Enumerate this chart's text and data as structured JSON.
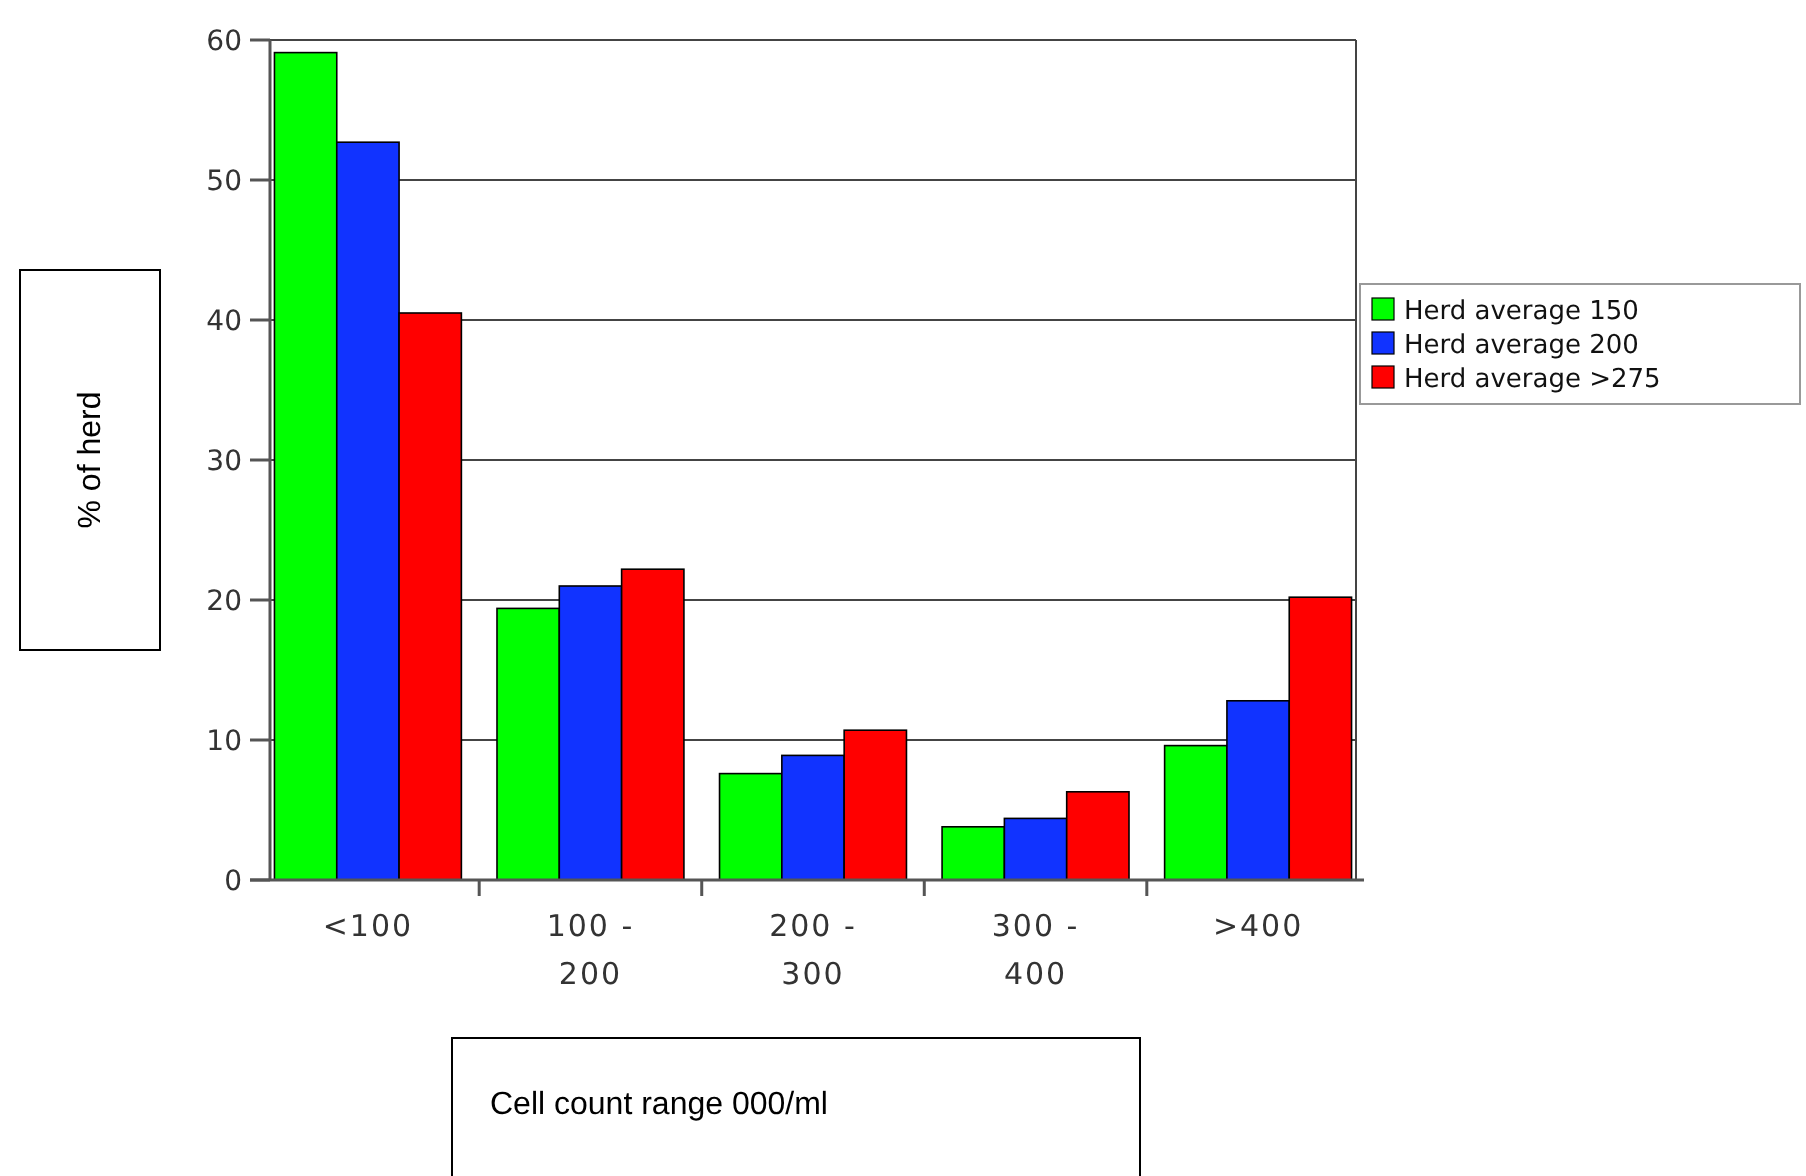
{
  "chart_data": {
    "type": "bar",
    "ylabel": "% of herd",
    "xlabel": "Cell count range 000/ml",
    "categories": [
      "<100",
      "100 - 200",
      "200 - 300",
      "300 - 400",
      ">400"
    ],
    "series": [
      {
        "name": "Herd average 150",
        "color": "#00ff00",
        "values": [
          59.1,
          19.4,
          7.6,
          3.8,
          9.6
        ]
      },
      {
        "name": "Herd average 200",
        "color": "#1133ff",
        "values": [
          52.7,
          21.0,
          8.9,
          4.4,
          12.8
        ]
      },
      {
        "name": "Herd average >275",
        "color": "#ff0000",
        "values": [
          40.5,
          22.2,
          10.7,
          6.3,
          20.2
        ]
      }
    ],
    "ylim": [
      0,
      60
    ],
    "yticks": [
      0,
      10,
      20,
      30,
      40,
      50,
      60
    ],
    "grid": "y",
    "legend": "right"
  }
}
